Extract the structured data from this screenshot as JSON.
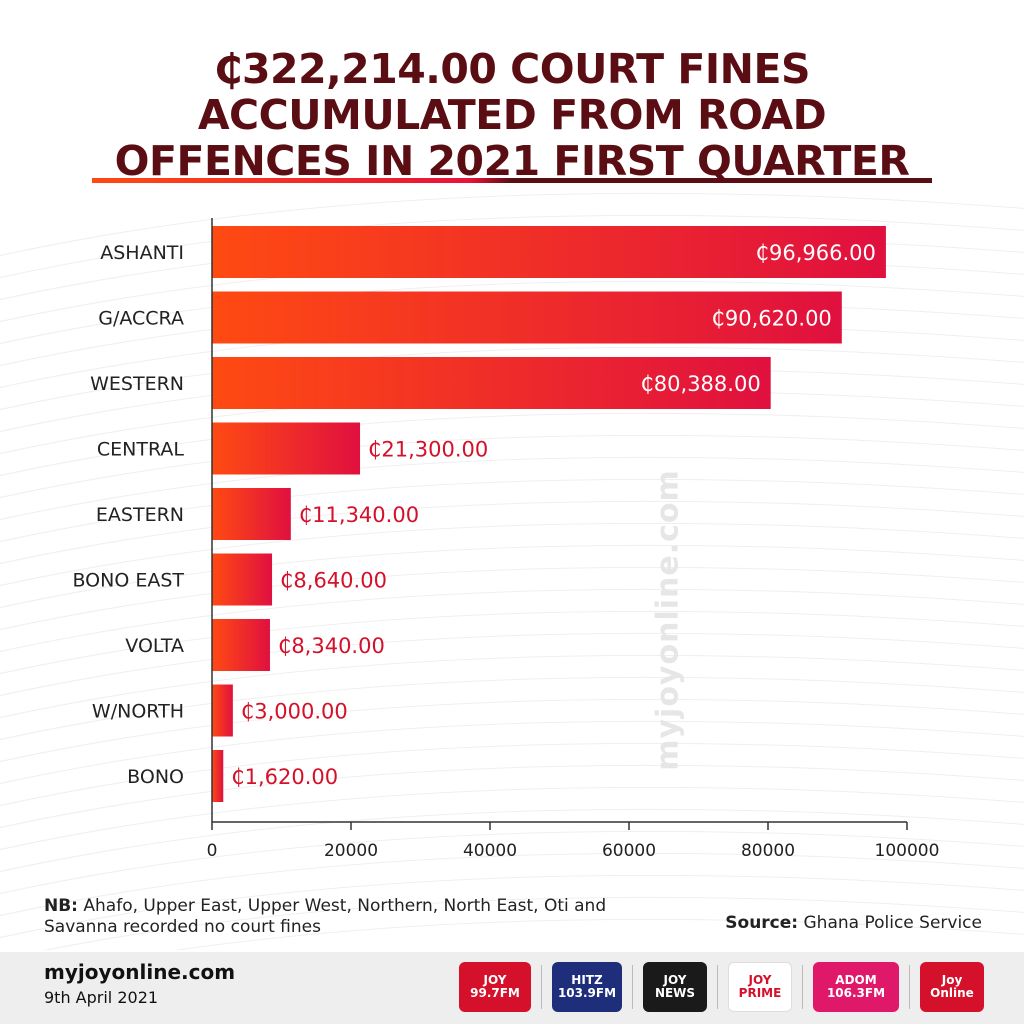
{
  "title_lines": [
    "₵322,214.00 COURT FINES",
    "ACCUMULATED FROM ROAD",
    "OFFENCES IN 2021 FIRST QUARTER"
  ],
  "watermark": "myjoyonline.com",
  "note": {
    "label": "NB:",
    "text": " Ahafo, Upper East, Upper West, Northern, North East, Oti and Savanna recorded no court fines"
  },
  "source": {
    "label": "Source:",
    "text": " Ghana Police Service"
  },
  "footer": {
    "site": "myjoyonline.com",
    "date": "9th April 2021",
    "logos": [
      "JOY 99.7FM",
      "HITZ 103.9FM",
      "JOY NEWS",
      "JOY PRIME",
      "ADOM 106.3FM",
      "Joy Online"
    ]
  },
  "colors": {
    "title": "#5a0d12",
    "bar_start": "#ff4a12",
    "bar_end": "#e0103f",
    "value_outside": "#d4102a",
    "value_inside": "#ffffff"
  },
  "chart_data": {
    "type": "bar",
    "orientation": "horizontal",
    "categories": [
      "ASHANTI",
      "G/ACCRA",
      "WESTERN",
      "CENTRAL",
      "EASTERN",
      "BONO EAST",
      "VOLTA",
      "W/NORTH",
      "BONO"
    ],
    "values": [
      96966,
      90620,
      80388,
      21300,
      11340,
      8640,
      8340,
      3000,
      1620
    ],
    "value_labels": [
      "₵96,966.00",
      "₵90,620.00",
      "₵80,388.00",
      "₵21,300.00",
      "₵11,340.00",
      "₵8,640.00",
      "₵8,340.00",
      "₵3,000.00",
      "₵1,620.00"
    ],
    "xlim": [
      0,
      100000
    ],
    "xticks": [
      0,
      20000,
      40000,
      60000,
      80000,
      100000
    ],
    "xtick_labels": [
      "0",
      "20000",
      "40000",
      "60000",
      "80000",
      "100000"
    ],
    "grid": false,
    "legend": "none"
  }
}
